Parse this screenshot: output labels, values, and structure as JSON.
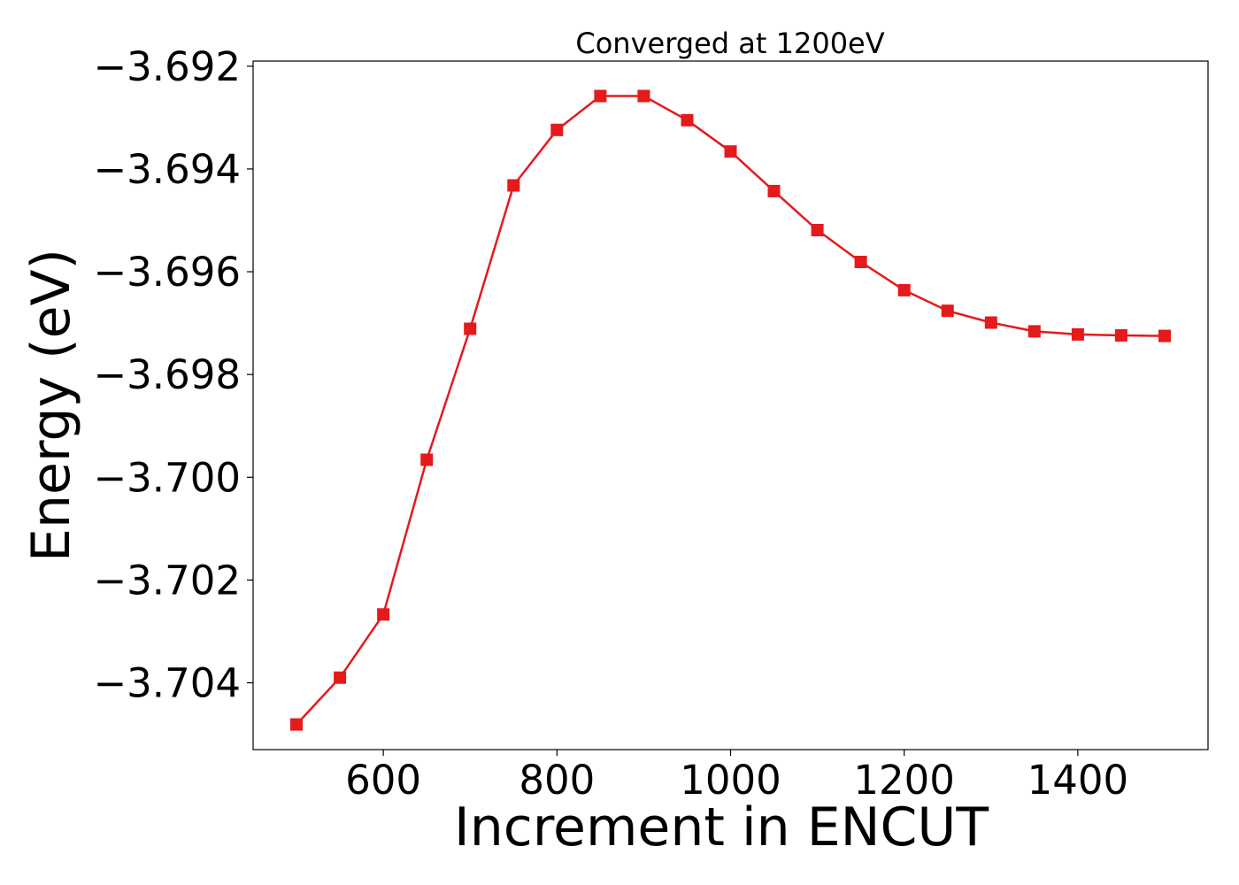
{
  "chart_data": {
    "type": "line",
    "title": "Converged at 1200eV",
    "xlabel": "Increment in ENCUT",
    "ylabel": "Energy (eV)",
    "xlim": [
      450,
      1550
    ],
    "ylim": [
      -3.7053,
      -3.6919
    ],
    "xticks": [
      600,
      800,
      1000,
      1200,
      1400
    ],
    "xtick_labels": [
      "600",
      "800",
      "1000",
      "1200",
      "1400"
    ],
    "yticks": [
      -3.692,
      -3.694,
      -3.696,
      -3.698,
      -3.7,
      -3.702,
      -3.704
    ],
    "ytick_labels": [
      "−3.692",
      "−3.694",
      "−3.696",
      "−3.698",
      "−3.700",
      "−3.702",
      "−3.704"
    ],
    "grid": false,
    "marker": "square",
    "series": [
      {
        "color": "#e41a1c",
        "x": [
          500,
          550,
          600,
          650,
          700,
          750,
          800,
          850,
          900,
          950,
          1000,
          1050,
          1100,
          1150,
          1200,
          1250,
          1300,
          1350,
          1400,
          1450,
          1500
        ],
        "values": [
          -3.70481,
          -3.7039,
          -3.70267,
          -3.69966,
          -3.69711,
          -3.69432,
          -3.69324,
          -3.69258,
          -3.69258,
          -3.69305,
          -3.69366,
          -3.69443,
          -3.69519,
          -3.69581,
          -3.69636,
          -3.69676,
          -3.69699,
          -3.69716,
          -3.69722,
          -3.69724,
          -3.69725
        ]
      }
    ]
  }
}
